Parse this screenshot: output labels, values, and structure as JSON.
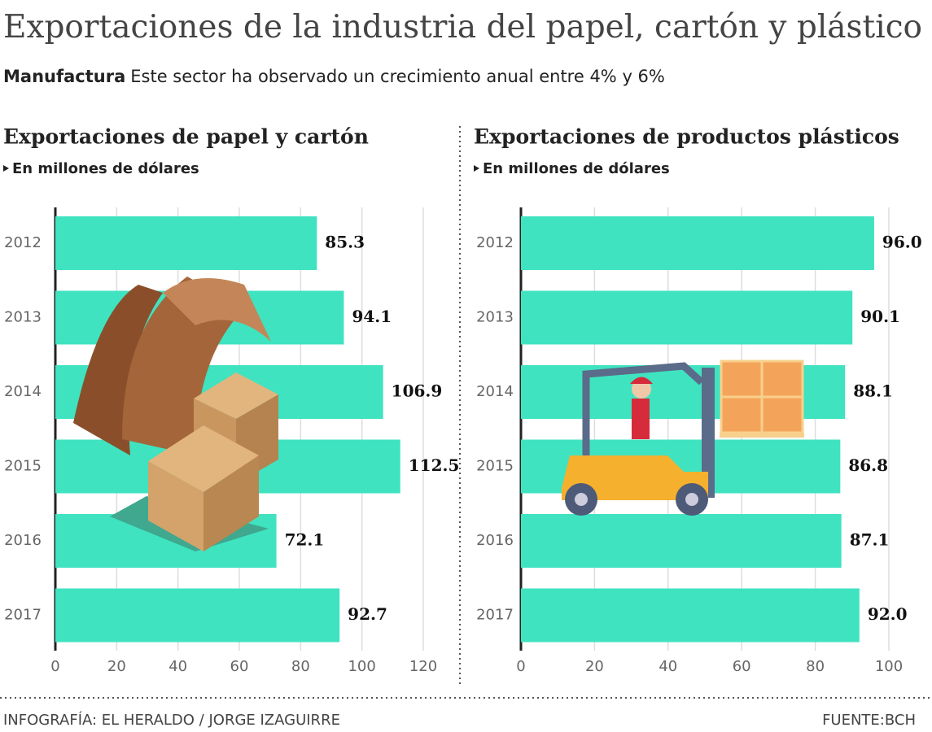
{
  "title": "Exportaciones de la industria del papel, cartón y plástico",
  "subtitle_bold": "Manufactura",
  "subtitle": "Este sector ha observado un crecimiento anual entre 4% y 6%",
  "chart_data": [
    {
      "type": "barh",
      "title": "Exportaciones de papel y cartón",
      "subtitle": "En millones de dólares",
      "categories": [
        "2012",
        "2013",
        "2014",
        "2015",
        "2016",
        "2017"
      ],
      "values": [
        85.3,
        94.1,
        106.9,
        112.5,
        72.1,
        92.7
      ],
      "color": "#3fe3c0",
      "xlim": [
        0,
        120
      ],
      "xticks": [
        0,
        20,
        40,
        60,
        80,
        100,
        120
      ],
      "grid": true
    },
    {
      "type": "barh",
      "title": "Exportaciones de productos plásticos",
      "subtitle": "En millones de dólares",
      "categories": [
        "2012",
        "2013",
        "2014",
        "2015",
        "2016",
        "2017"
      ],
      "values": [
        96.0,
        90.1,
        88.1,
        86.8,
        87.1,
        92.0
      ],
      "value_labels": [
        "96.0",
        "90.1",
        "88.1",
        "86.8",
        "87.1",
        "92.0"
      ],
      "color": "#3fe3c0",
      "xlim": [
        0,
        100
      ],
      "xticks": [
        0,
        20,
        40,
        60,
        80,
        100
      ],
      "grid": true
    }
  ],
  "credit": "INFOGRAFÍA: EL HERALDO / JORGE IZAGUIRRE",
  "source": "FUENTE:BCH"
}
